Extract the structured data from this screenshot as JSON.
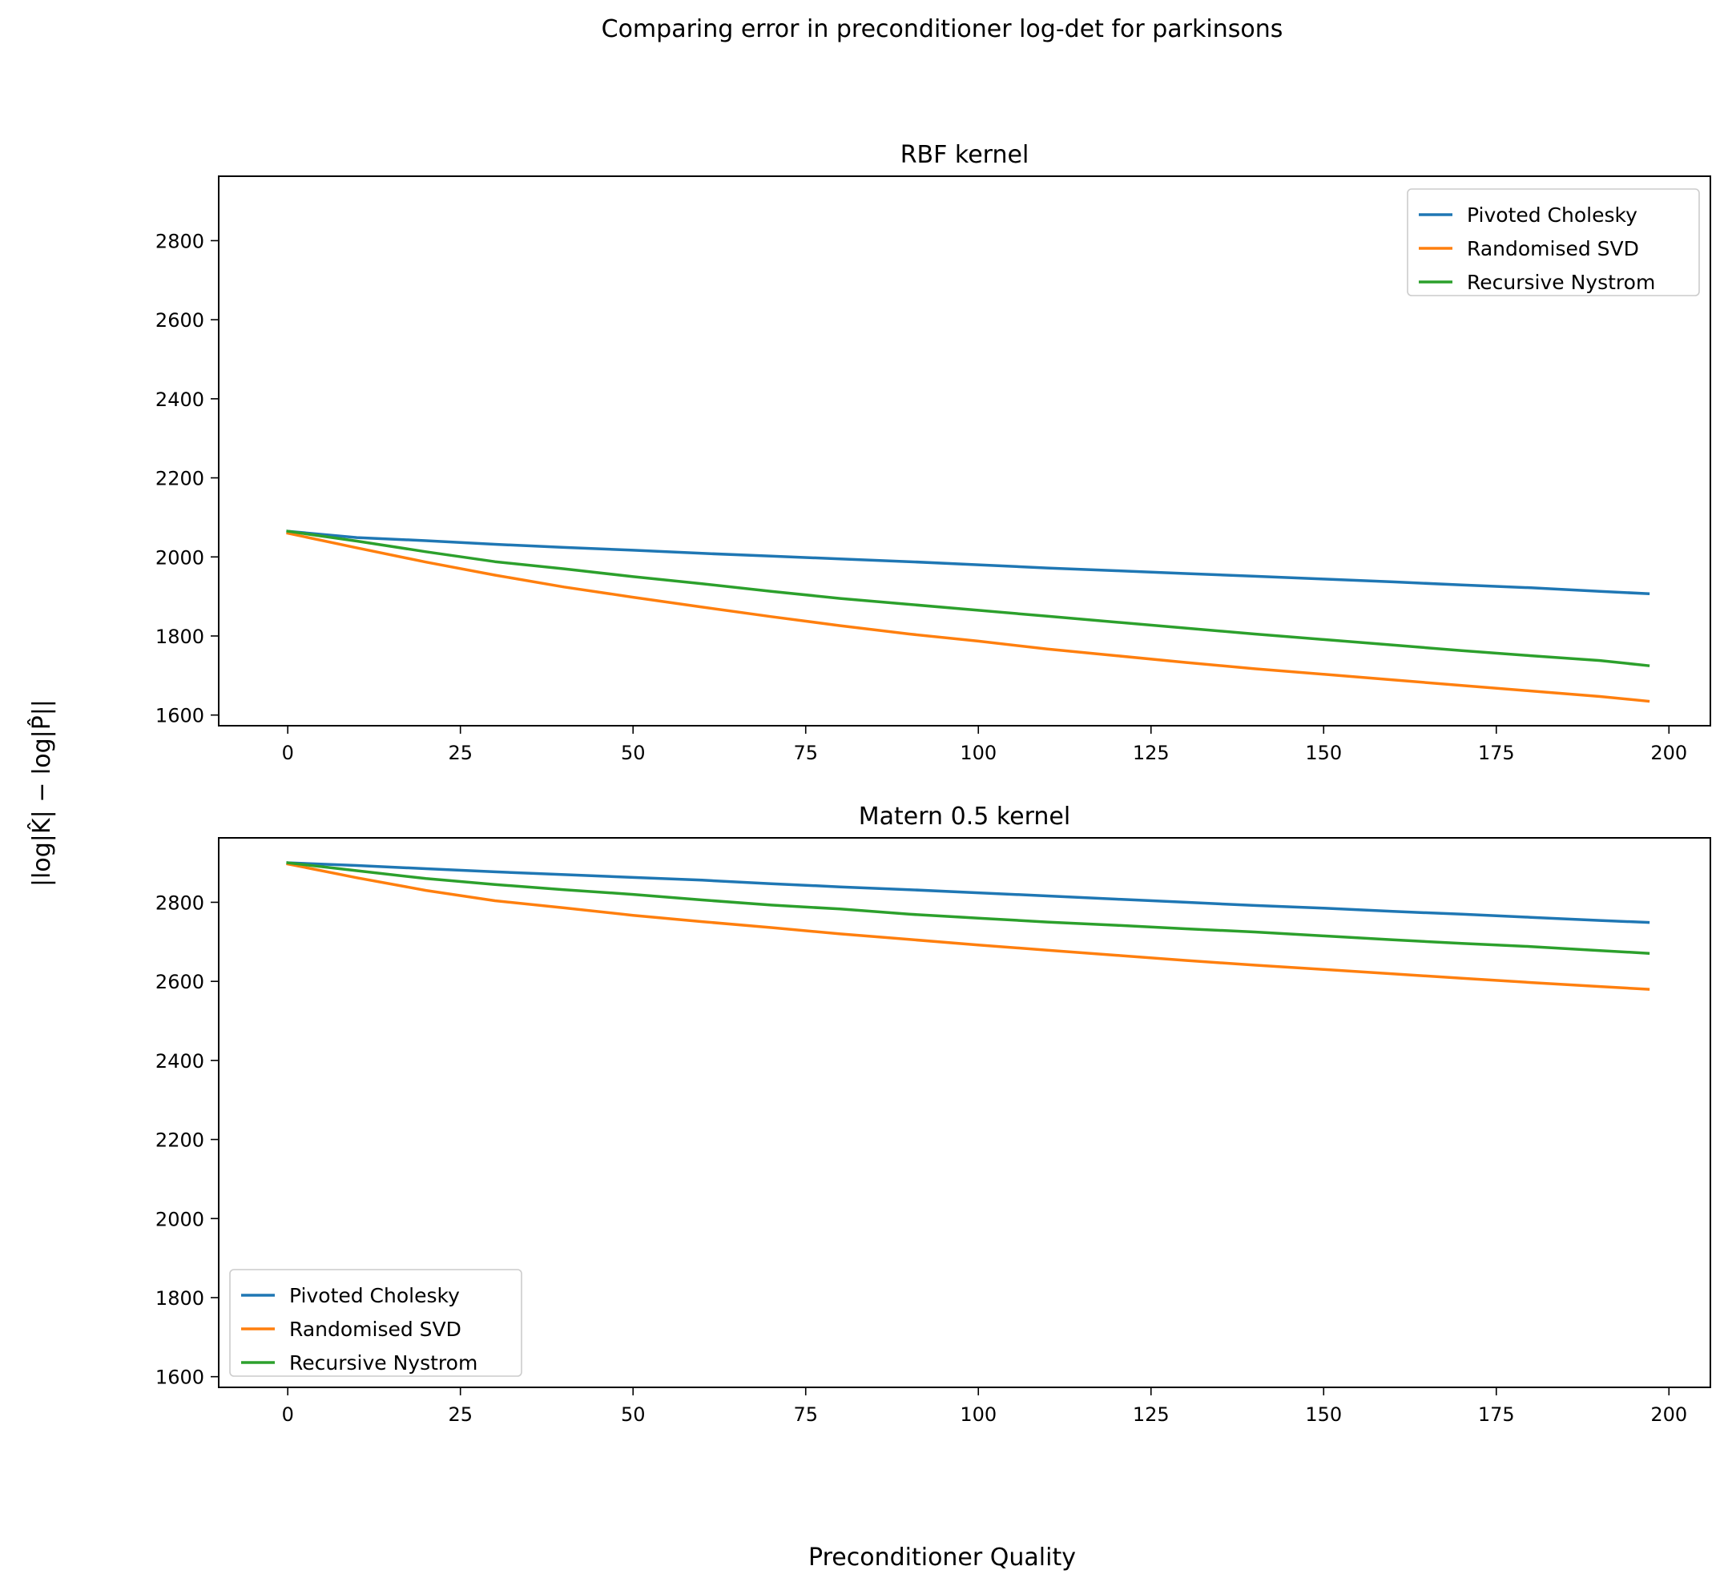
{
  "figure": {
    "suptitle": "Comparing error in preconditioner log-det for parkinsons",
    "ylabel": "|log|K̂| − log|P̂||",
    "xlabel": "Preconditioner Quality"
  },
  "chart_data": [
    {
      "type": "line",
      "title": "RBF kernel",
      "xlabel": "",
      "ylabel": "",
      "xlim": [
        -10,
        206
      ],
      "ylim": [
        1573,
        2963
      ],
      "xticks": [
        0,
        25,
        50,
        75,
        100,
        125,
        150,
        175,
        200
      ],
      "yticks": [
        1600,
        1800,
        2000,
        2200,
        2400,
        2600,
        2800
      ],
      "grid": false,
      "legend": "top-right",
      "x": [
        0,
        10,
        20,
        30,
        40,
        50,
        60,
        70,
        80,
        90,
        100,
        110,
        120,
        130,
        140,
        150,
        160,
        170,
        180,
        190,
        197
      ],
      "series": [
        {
          "name": "Pivoted Cholesky",
          "color": "#1f77b4",
          "values": [
            2065,
            2049,
            2041,
            2032,
            2024,
            2017,
            2009,
            2002,
            1995,
            1988,
            1980,
            1972,
            1965,
            1958,
            1951,
            1944,
            1937,
            1929,
            1922,
            1913,
            1907
          ]
        },
        {
          "name": "Randomised SVD",
          "color": "#ff7f0e",
          "values": [
            2060,
            2023,
            1987,
            1954,
            1924,
            1898,
            1873,
            1849,
            1826,
            1805,
            1787,
            1767,
            1750,
            1733,
            1717,
            1703,
            1689,
            1675,
            1661,
            1647,
            1635
          ]
        },
        {
          "name": "Recursive Nystrom",
          "color": "#2ca02c",
          "values": [
            2065,
            2040,
            2013,
            1988,
            1970,
            1950,
            1932,
            1913,
            1895,
            1880,
            1865,
            1850,
            1835,
            1820,
            1805,
            1791,
            1777,
            1763,
            1750,
            1738,
            1725
          ]
        }
      ]
    },
    {
      "type": "line",
      "title": "Matern 0.5 kernel",
      "xlabel": "",
      "ylabel": "",
      "xlim": [
        -10,
        206
      ],
      "ylim": [
        1573,
        2963
      ],
      "xticks": [
        0,
        25,
        50,
        75,
        100,
        125,
        150,
        175,
        200
      ],
      "yticks": [
        1600,
        1800,
        2000,
        2200,
        2400,
        2600,
        2800
      ],
      "grid": false,
      "legend": "bottom-left",
      "x": [
        0,
        10,
        20,
        30,
        40,
        50,
        60,
        70,
        80,
        90,
        100,
        110,
        120,
        130,
        140,
        150,
        160,
        170,
        180,
        190,
        197
      ],
      "series": [
        {
          "name": "Pivoted Cholesky",
          "color": "#1f77b4",
          "values": [
            2900,
            2893,
            2885,
            2877,
            2870,
            2863,
            2856,
            2847,
            2839,
            2832,
            2824,
            2816,
            2808,
            2800,
            2792,
            2785,
            2777,
            2770,
            2762,
            2754,
            2749
          ]
        },
        {
          "name": "Randomised SVD",
          "color": "#ff7f0e",
          "values": [
            2897,
            2862,
            2830,
            2804,
            2786,
            2767,
            2751,
            2736,
            2720,
            2706,
            2692,
            2679,
            2666,
            2653,
            2641,
            2630,
            2619,
            2608,
            2597,
            2587,
            2580
          ]
        },
        {
          "name": "Recursive Nystrom",
          "color": "#2ca02c",
          "values": [
            2900,
            2880,
            2860,
            2845,
            2832,
            2820,
            2806,
            2793,
            2783,
            2770,
            2760,
            2750,
            2742,
            2733,
            2725,
            2715,
            2705,
            2696,
            2688,
            2678,
            2671
          ]
        }
      ]
    }
  ]
}
